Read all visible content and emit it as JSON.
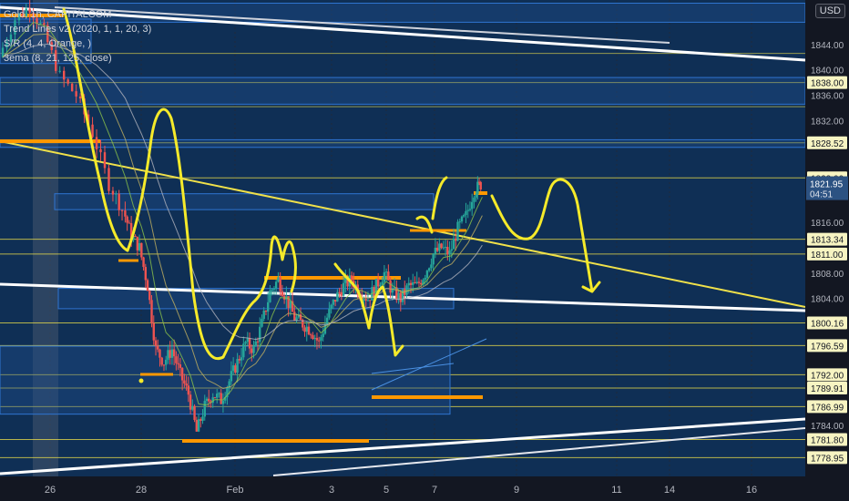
{
  "header": {
    "symbol": "Gold, 1h, CAPITALCOM",
    "indicators": [
      "Trend Lines v2 (2020, 1, 1, 20, 3)",
      "S/R (4, 4, Orange, )",
      "3ema (8, 21, 125, close)"
    ],
    "currency": "USD"
  },
  "colors": {
    "background": "#131722",
    "band_background": "#0f2f55",
    "grid": "#1f2a3c",
    "candle_up": "#26a69a",
    "candle_down": "#ef5350",
    "support_line": "#f0e14a",
    "sr_orange": "#ff9800",
    "trend_white": "#ffffff",
    "drawing_yellow": "#f5ea2a",
    "zone_blue": "#2962ff",
    "price_tag_bg": "#f7f4c2",
    "current_price_bg": "#2c5282"
  },
  "chart_data": {
    "type": "candlestick",
    "x_labels": [
      "26",
      "28",
      "Feb",
      "3",
      "5",
      "7",
      "9",
      "11",
      "14",
      "16"
    ],
    "y_ticks": [
      1844.0,
      1840.0,
      1836.0,
      1832.0,
      1816.0,
      1808.0,
      1804.0,
      1784.0
    ],
    "ylim": [
      1776.0,
      1851.0
    ],
    "price_levels": [
      "1838.00",
      "1828.52",
      "1823.00",
      "1813.34",
      "1811.00",
      "1800.16",
      "1796.59",
      "1792.00",
      "1789.91",
      "1786.99",
      "1781.80",
      "1778.95"
    ],
    "current_price": "1821.95",
    "countdown": "04:51",
    "series": [
      {
        "name": "price",
        "points": [
          [
            0,
            1842
          ],
          [
            8,
            1848
          ],
          [
            15,
            1850
          ],
          [
            22,
            1846
          ],
          [
            30,
            1839
          ],
          [
            38,
            1836
          ],
          [
            46,
            1830
          ],
          [
            54,
            1822
          ],
          [
            60,
            1818
          ],
          [
            64,
            1814
          ],
          [
            68,
            1812
          ],
          [
            72,
            1806
          ],
          [
            76,
            1796
          ],
          [
            80,
            1794
          ],
          [
            84,
            1796
          ],
          [
            88,
            1792
          ],
          [
            92,
            1789
          ],
          [
            96,
            1783
          ],
          [
            100,
            1787
          ],
          [
            104,
            1789
          ],
          [
            108,
            1788
          ],
          [
            112,
            1791
          ],
          [
            116,
            1794
          ],
          [
            120,
            1797
          ],
          [
            124,
            1796
          ],
          [
            128,
            1800
          ],
          [
            132,
            1805
          ],
          [
            136,
            1807
          ],
          [
            140,
            1804
          ],
          [
            144,
            1801
          ],
          [
            148,
            1800
          ],
          [
            152,
            1799
          ],
          [
            156,
            1797
          ],
          [
            160,
            1801
          ],
          [
            164,
            1804
          ],
          [
            168,
            1806
          ],
          [
            172,
            1807
          ],
          [
            176,
            1805
          ],
          [
            180,
            1804
          ],
          [
            184,
            1806
          ],
          [
            188,
            1808
          ],
          [
            192,
            1805
          ],
          [
            196,
            1804
          ],
          [
            200,
            1806
          ],
          [
            204,
            1806
          ],
          [
            208,
            1808
          ],
          [
            212,
            1811
          ],
          [
            216,
            1812
          ],
          [
            220,
            1811
          ],
          [
            224,
            1815
          ],
          [
            228,
            1817
          ],
          [
            232,
            1821
          ],
          [
            235,
            1822
          ]
        ]
      }
    ]
  }
}
